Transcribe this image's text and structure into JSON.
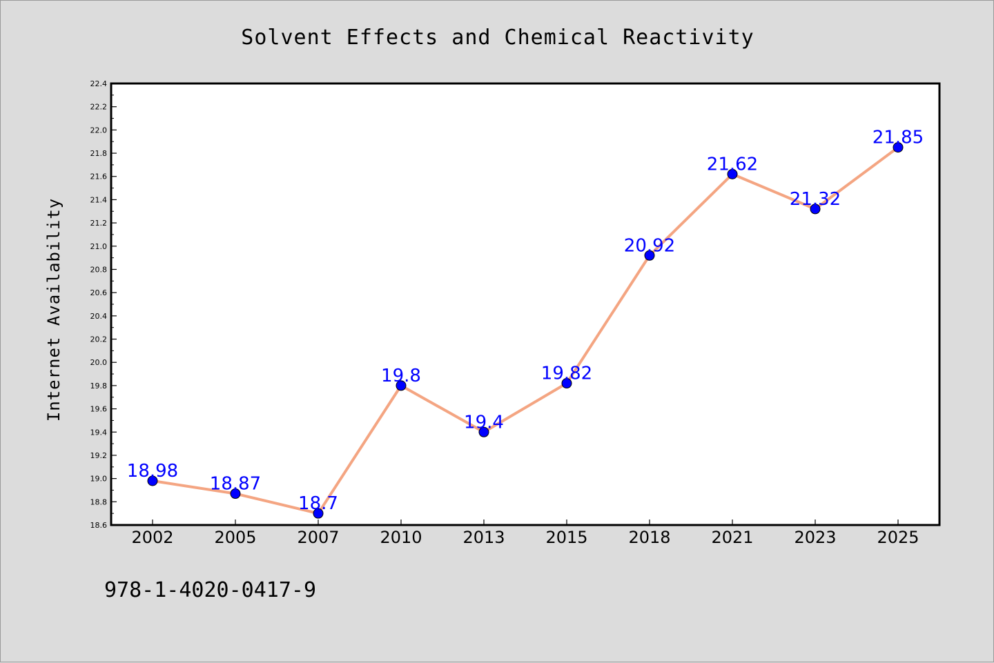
{
  "chart_data": {
    "type": "line",
    "title": "Solvent Effects and Chemical Reactivity",
    "xlabel": "",
    "ylabel": "Internet Availability",
    "categories": [
      "2002",
      "2005",
      "2007",
      "2010",
      "2013",
      "2015",
      "2018",
      "2021",
      "2023",
      "2025"
    ],
    "series": [
      {
        "values": [
          18.98,
          18.87,
          18.7,
          19.8,
          19.4,
          19.82,
          20.92,
          21.62,
          21.32,
          21.85
        ],
        "labels": [
          "18.98",
          "18.87",
          "18.7",
          "19.8",
          "19.4",
          "19.82",
          "20.92",
          "21.62",
          "21.32",
          "21.85"
        ]
      }
    ],
    "ylim": [
      18.6,
      22.4
    ],
    "yticks": [
      "18.6",
      "18.8",
      "19.0",
      "19.2",
      "19.4",
      "19.6",
      "19.8",
      "20.0",
      "20.2",
      "20.4",
      "20.6",
      "20.8",
      "21.0",
      "21.2",
      "21.4",
      "21.6",
      "21.8",
      "22.0",
      "22.2",
      "22.4"
    ],
    "grid": false,
    "legend": "none",
    "colors": {
      "line": "#f4a582",
      "marker": "#0000ff",
      "data_label": "#0000ff",
      "plot_background": "#ffffff",
      "figure_background": "#dcdcdc"
    }
  },
  "footnote": "978-1-4020-0417-9"
}
